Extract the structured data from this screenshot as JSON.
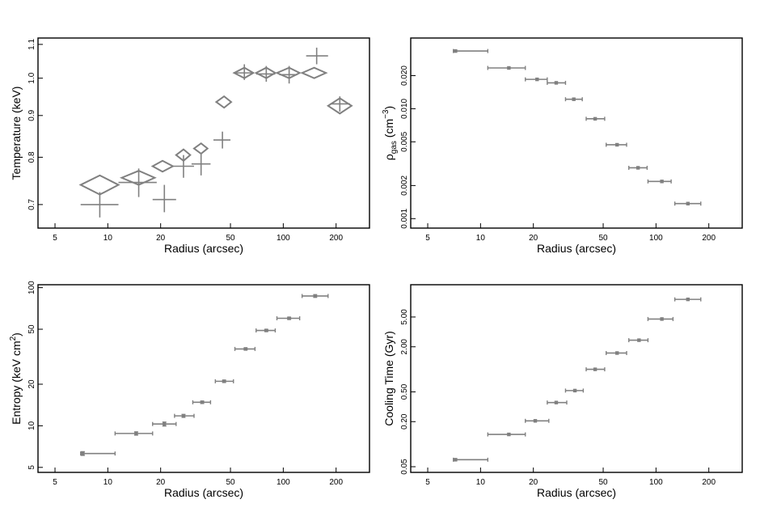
{
  "colors": {
    "mark": "#808080",
    "axis": "#000000",
    "background": "#ffffff"
  },
  "chart_data": [
    {
      "id": "temperature",
      "type": "scatter",
      "xlabel": "Radius (arcsec)",
      "ylabel": "Temperature (keV)",
      "xscale": "log",
      "yscale": "log",
      "xlim": [
        4,
        310
      ],
      "ylim": [
        0.655,
        1.12
      ],
      "xticks": [
        5,
        10,
        20,
        50,
        100,
        200
      ],
      "yticks": [
        0.7,
        0.8,
        0.9,
        1.0,
        1.1
      ],
      "ytick_labels": [
        "0.7",
        "0.8",
        "0.9",
        "1.0",
        "1.1"
      ],
      "series": [
        {
          "marker": "cross",
          "points": [
            {
              "x": 9.0,
              "xlo": 7.0,
              "xhi": 11.5,
              "y": 0.7,
              "ylo": 0.675,
              "yhi": 0.725
            },
            {
              "x": 15.0,
              "xlo": 11.5,
              "xhi": 19.0,
              "y": 0.745,
              "ylo": 0.715,
              "yhi": 0.775
            },
            {
              "x": 21.0,
              "xlo": 18.0,
              "xhi": 24.5,
              "y": 0.71,
              "ylo": 0.685,
              "yhi": 0.74
            },
            {
              "x": 27.0,
              "xlo": 23.5,
              "xhi": 31.0,
              "y": 0.78,
              "ylo": 0.755,
              "yhi": 0.805
            },
            {
              "x": 34.0,
              "xlo": 30.0,
              "xhi": 38.5,
              "y": 0.785,
              "ylo": 0.76,
              "yhi": 0.81
            },
            {
              "x": 45.0,
              "xlo": 40.0,
              "xhi": 50.0,
              "y": 0.84,
              "ylo": 0.82,
              "yhi": 0.86
            },
            {
              "x": 60.0,
              "xlo": 52.0,
              "xhi": 68.0,
              "y": 1.015,
              "ylo": 0.995,
              "yhi": 1.04
            },
            {
              "x": 80.0,
              "xlo": 70.0,
              "xhi": 90.0,
              "y": 1.012,
              "ylo": 0.99,
              "yhi": 1.035
            },
            {
              "x": 108.0,
              "xlo": 95.0,
              "xhi": 120.0,
              "y": 1.01,
              "ylo": 0.985,
              "yhi": 1.035
            },
            {
              "x": 155.0,
              "xlo": 135.0,
              "xhi": 180.0,
              "y": 1.065,
              "ylo": 1.04,
              "yhi": 1.09
            },
            {
              "x": 210.0,
              "xlo": 185.0,
              "xhi": 240.0,
              "y": 0.93,
              "ylo": 0.91,
              "yhi": 0.95
            }
          ]
        },
        {
          "marker": "diamond",
          "points": [
            {
              "x": 9.0,
              "xlo": 7.0,
              "xhi": 11.5,
              "y": 0.74,
              "ylo": 0.72,
              "yhi": 0.76
            },
            {
              "x": 15.0,
              "xlo": 12.0,
              "xhi": 18.5,
              "y": 0.755,
              "ylo": 0.74,
              "yhi": 0.77
            },
            {
              "x": 20.5,
              "xlo": 18.0,
              "xhi": 23.5,
              "y": 0.78,
              "ylo": 0.768,
              "yhi": 0.792
            },
            {
              "x": 27.0,
              "xlo": 24.5,
              "xhi": 29.5,
              "y": 0.805,
              "ylo": 0.792,
              "yhi": 0.818
            },
            {
              "x": 34.0,
              "xlo": 31.0,
              "xhi": 37.0,
              "y": 0.82,
              "ylo": 0.808,
              "yhi": 0.832
            },
            {
              "x": 46.0,
              "xlo": 41.5,
              "xhi": 50.5,
              "y": 0.935,
              "ylo": 0.92,
              "yhi": 0.95
            },
            {
              "x": 60.0,
              "xlo": 52.5,
              "xhi": 67.5,
              "y": 1.015,
              "ylo": 1.0,
              "yhi": 1.03
            },
            {
              "x": 80.0,
              "xlo": 70.0,
              "xhi": 90.0,
              "y": 1.015,
              "ylo": 1.0,
              "yhi": 1.03
            },
            {
              "x": 108.0,
              "xlo": 92.0,
              "xhi": 124.0,
              "y": 1.015,
              "ylo": 1.0,
              "yhi": 1.03
            },
            {
              "x": 150.0,
              "xlo": 128.0,
              "xhi": 175.0,
              "y": 1.015,
              "ylo": 1.0,
              "yhi": 1.03
            },
            {
              "x": 210.0,
              "xlo": 180.0,
              "xhi": 245.0,
              "y": 0.925,
              "ylo": 0.905,
              "yhi": 0.945
            }
          ]
        }
      ]
    },
    {
      "id": "density",
      "type": "scatter",
      "xlabel": "Radius (arcsec)",
      "ylabel_prefix": "ρ",
      "ylabel_sub": "gas",
      "ylabel_mid": " (cm",
      "ylabel_sup": "−3",
      "ylabel_end": ")",
      "xscale": "log",
      "yscale": "log",
      "xlim": [
        4,
        310
      ],
      "ylim": [
        0.00082,
        0.044
      ],
      "xticks": [
        5,
        10,
        20,
        50,
        100,
        200
      ],
      "yticks": [
        0.001,
        0.002,
        0.005,
        0.01,
        0.02
      ],
      "ytick_labels": [
        "0.001",
        "0.002",
        "0.005",
        "0.010",
        "0.020"
      ],
      "series": [
        {
          "marker": "dot",
          "points": [
            {
              "x": 7.2,
              "xlo": 7.0,
              "xhi": 11.0,
              "y": 0.0335
            },
            {
              "x": 14.5,
              "xlo": 11.0,
              "xhi": 18.0,
              "y": 0.0235
            },
            {
              "x": 21.0,
              "xlo": 18.0,
              "xhi": 24.0,
              "y": 0.0185
            },
            {
              "x": 27.0,
              "xlo": 24.0,
              "xhi": 30.5,
              "y": 0.0172
            },
            {
              "x": 34.0,
              "xlo": 30.5,
              "xhi": 38.0,
              "y": 0.0122
            },
            {
              "x": 45.0,
              "xlo": 40.0,
              "xhi": 51.0,
              "y": 0.0081
            },
            {
              "x": 60.0,
              "xlo": 52.0,
              "xhi": 68.0,
              "y": 0.0047
            },
            {
              "x": 79.0,
              "xlo": 70.0,
              "xhi": 89.0,
              "y": 0.0029
            },
            {
              "x": 108.0,
              "xlo": 90.0,
              "xhi": 122.0,
              "y": 0.00218
            },
            {
              "x": 152.0,
              "xlo": 128.0,
              "xhi": 180.0,
              "y": 0.00137
            }
          ]
        }
      ]
    },
    {
      "id": "entropy",
      "type": "scatter",
      "xlabel": "Radius (arcsec)",
      "ylabel_prefix": "Entropy (keV cm",
      "ylabel_sup": "2",
      "ylabel_end": ")",
      "xscale": "log",
      "yscale": "log",
      "xlim": [
        4,
        310
      ],
      "ylim": [
        4.6,
        105
      ],
      "xticks": [
        5,
        10,
        20,
        50,
        100,
        200
      ],
      "yticks": [
        5,
        10,
        20,
        50,
        100
      ],
      "ytick_labels": [
        "5",
        "10",
        "20",
        "50",
        "100"
      ],
      "series": [
        {
          "marker": "dot",
          "points": [
            {
              "x": 7.2,
              "xlo": 7.0,
              "xhi": 11.0,
              "y": 6.3,
              "ylo": 6.1,
              "yhi": 6.5
            },
            {
              "x": 14.5,
              "xlo": 11.0,
              "xhi": 18.0,
              "y": 8.8,
              "ylo": 8.55,
              "yhi": 9.05
            },
            {
              "x": 21.0,
              "xlo": 18.0,
              "xhi": 24.5,
              "y": 10.3,
              "ylo": 9.95,
              "yhi": 10.65
            },
            {
              "x": 27.0,
              "xlo": 24.0,
              "xhi": 31.0,
              "y": 11.8,
              "ylo": 11.5,
              "yhi": 12.1
            },
            {
              "x": 34.5,
              "xlo": 30.5,
              "xhi": 38.5,
              "y": 14.8,
              "ylo": 14.5,
              "yhi": 15.1
            },
            {
              "x": 46.0,
              "xlo": 41.0,
              "xhi": 52.0,
              "y": 21.0,
              "ylo": 20.6,
              "yhi": 21.4
            },
            {
              "x": 61.0,
              "xlo": 53.0,
              "xhi": 69.0,
              "y": 36.0,
              "ylo": 35.4,
              "yhi": 36.6
            },
            {
              "x": 80.0,
              "xlo": 70.0,
              "xhi": 90.0,
              "y": 49.0,
              "ylo": 48.2,
              "yhi": 49.8
            },
            {
              "x": 108.0,
              "xlo": 92.0,
              "xhi": 124.0,
              "y": 60.0,
              "ylo": 59.0,
              "yhi": 61.0
            },
            {
              "x": 152.0,
              "xlo": 128.0,
              "xhi": 180.0,
              "y": 87.0,
              "ylo": 85.0,
              "yhi": 89.0
            }
          ]
        }
      ]
    },
    {
      "id": "cooling",
      "type": "scatter",
      "xlabel": "Radius (arcsec)",
      "ylabel": "Cooling Time (Gyr)",
      "xscale": "log",
      "yscale": "log",
      "xlim": [
        4,
        310
      ],
      "ylim": [
        0.042,
        13.5
      ],
      "xticks": [
        5,
        10,
        20,
        50,
        100,
        200
      ],
      "yticks": [
        0.05,
        0.2,
        0.5,
        2.0,
        5.0
      ],
      "ytick_labels": [
        "0.05",
        "0.20",
        "0.50",
        "2.00",
        "5.00"
      ],
      "series": [
        {
          "marker": "dot",
          "points": [
            {
              "x": 7.2,
              "xlo": 7.0,
              "xhi": 11.0,
              "y": 0.062
            },
            {
              "x": 14.5,
              "xlo": 11.0,
              "xhi": 18.0,
              "y": 0.135
            },
            {
              "x": 20.5,
              "xlo": 18.0,
              "xhi": 24.5,
              "y": 0.205
            },
            {
              "x": 27.0,
              "xlo": 24.0,
              "xhi": 31.0,
              "y": 0.36
            },
            {
              "x": 34.5,
              "xlo": 30.5,
              "xhi": 38.5,
              "y": 0.52
            },
            {
              "x": 45.0,
              "xlo": 40.0,
              "xhi": 51.0,
              "y": 1.0
            },
            {
              "x": 60.0,
              "xlo": 52.0,
              "xhi": 68.0,
              "y": 1.65
            },
            {
              "x": 80.0,
              "xlo": 70.0,
              "xhi": 90.0,
              "y": 2.45
            },
            {
              "x": 108.0,
              "xlo": 90.0,
              "xhi": 125.0,
              "y": 4.7
            },
            {
              "x": 152.0,
              "xlo": 128.0,
              "xhi": 180.0,
              "y": 8.6
            }
          ]
        }
      ]
    }
  ]
}
